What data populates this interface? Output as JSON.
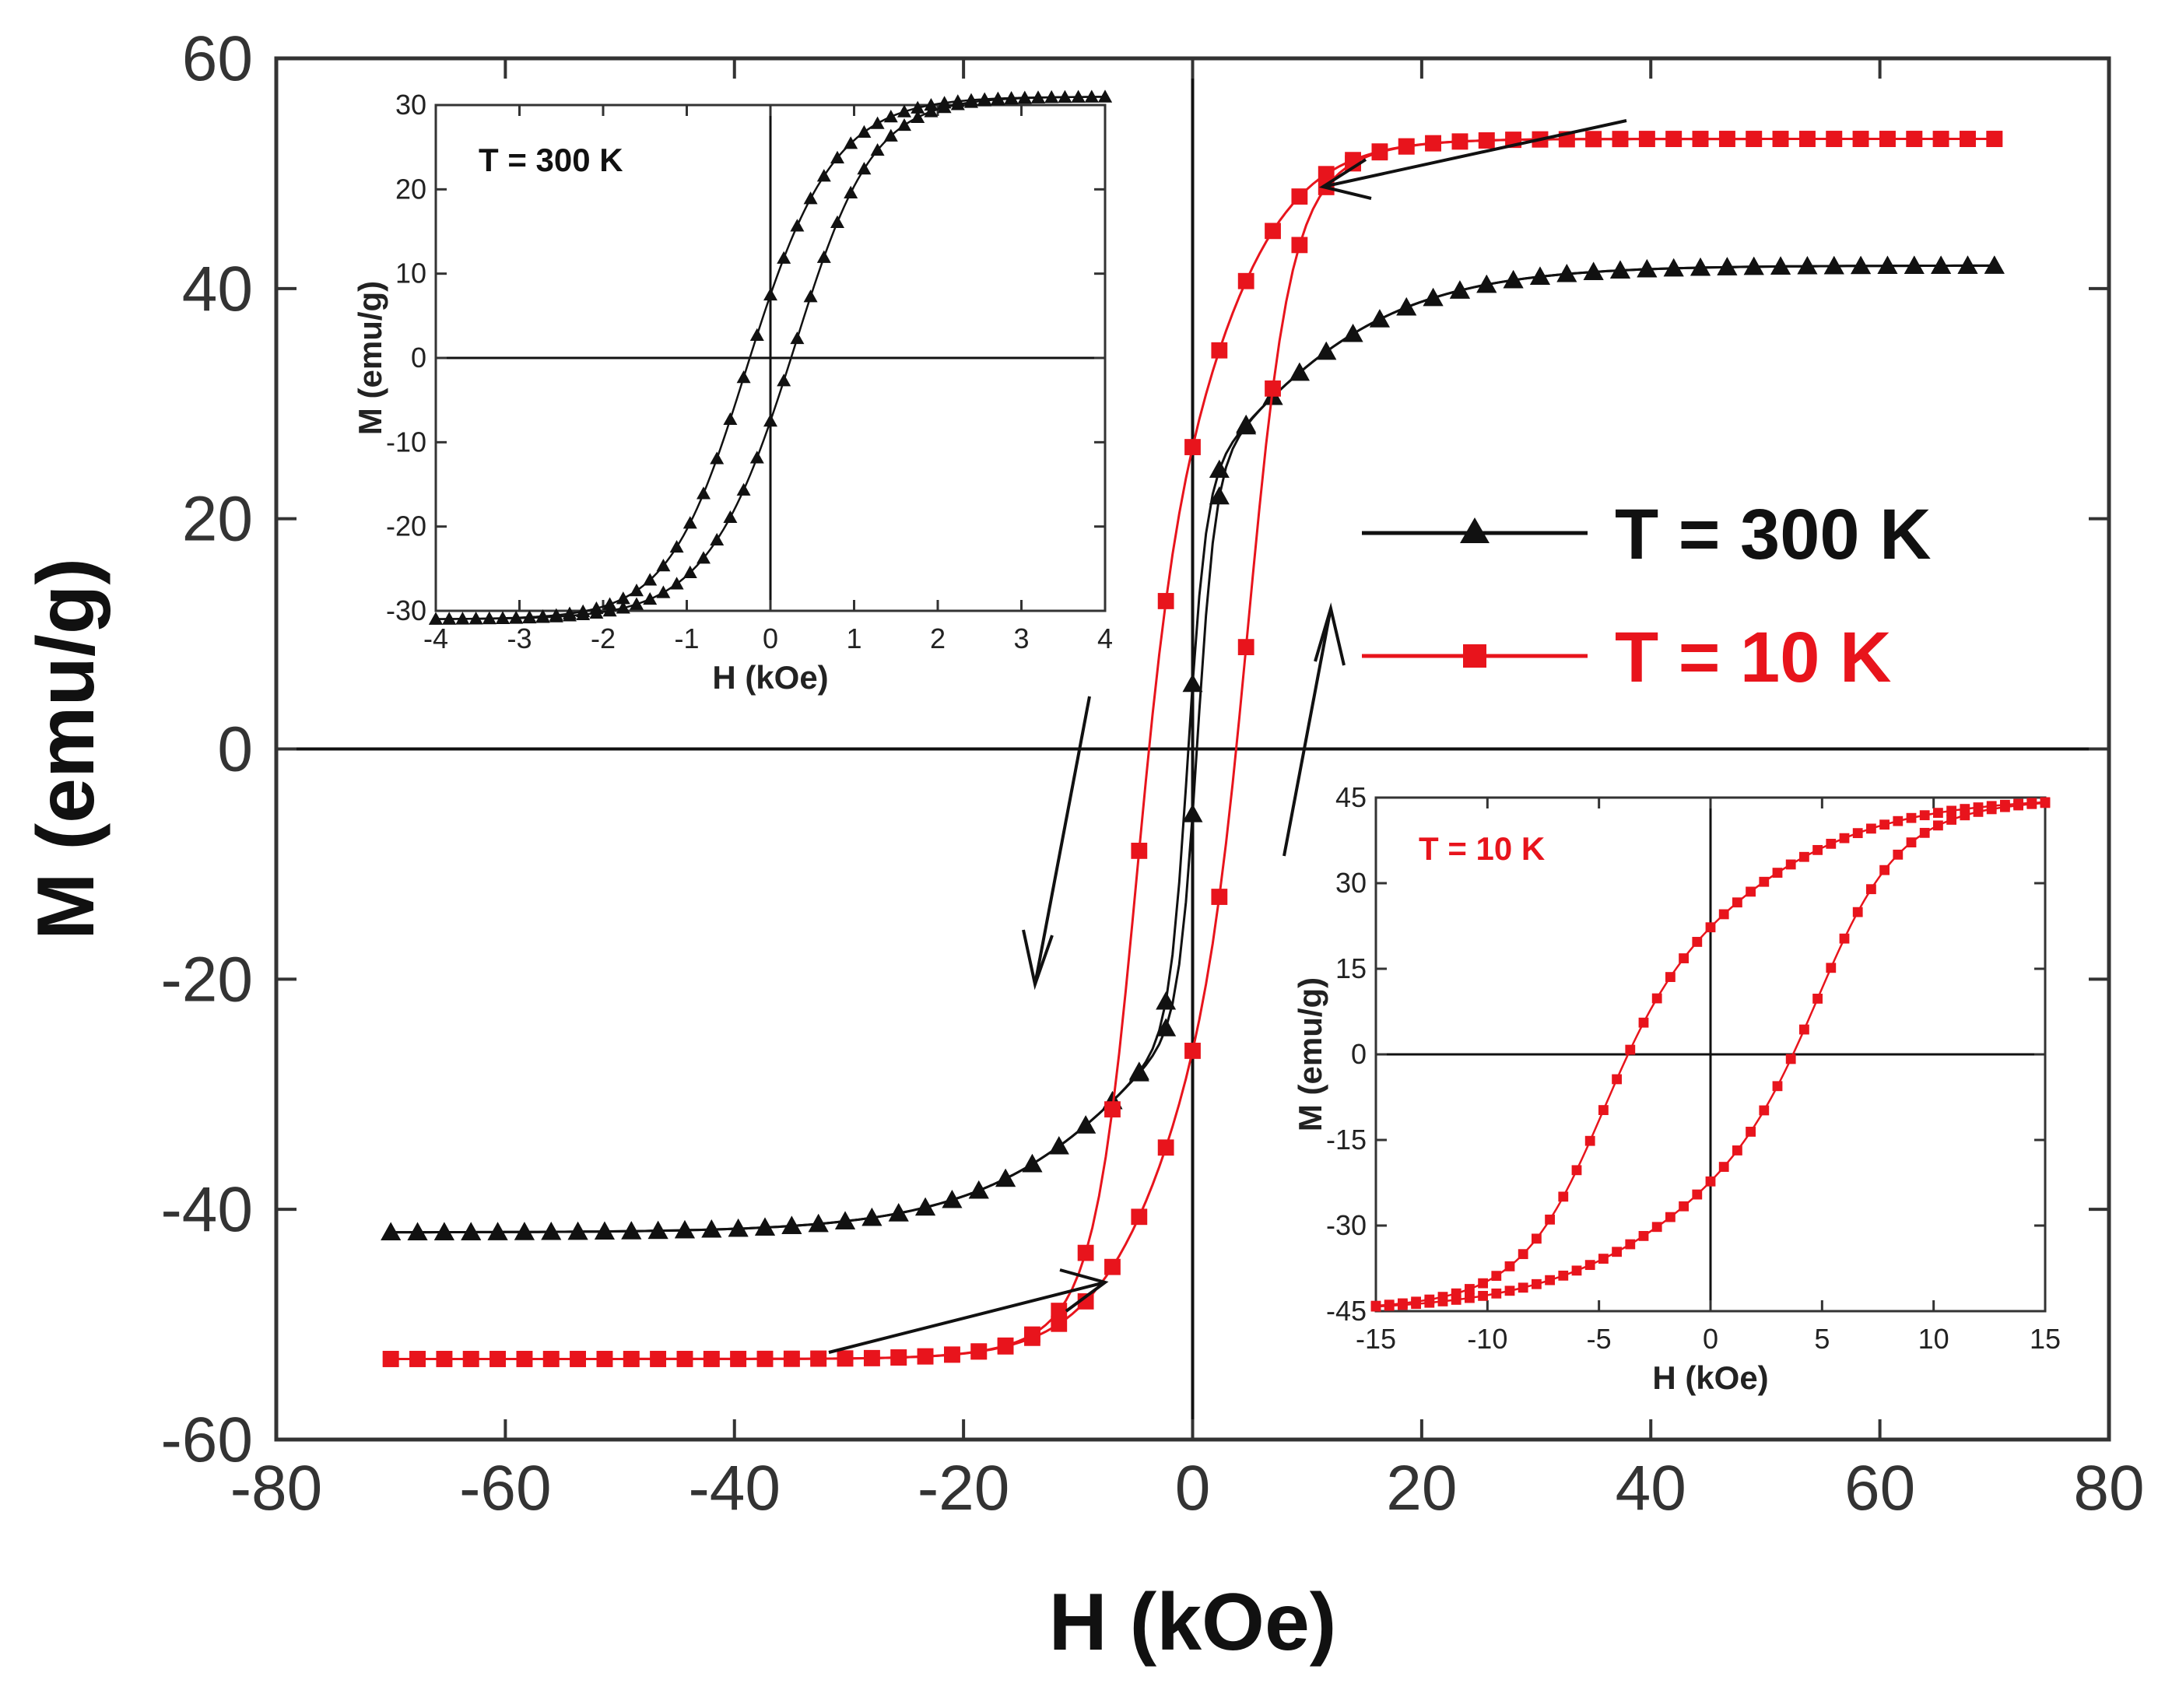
{
  "colors": {
    "black_series": "#111111",
    "red_series": "#e8141c",
    "axis": "#333333",
    "background": "#ffffff"
  },
  "chart_data": [
    {
      "id": "main",
      "type": "scatter",
      "xlabel": "H (kOe)",
      "ylabel": "M (emu/g)",
      "xlim": [
        -80,
        80
      ],
      "ylim": [
        -60,
        60
      ],
      "xticks": [
        -80,
        -60,
        -40,
        -20,
        0,
        20,
        40,
        60,
        80
      ],
      "yticks": [
        -60,
        -40,
        -20,
        0,
        20,
        40,
        60
      ],
      "legend": {
        "position": "right",
        "entries": [
          "T = 300 K",
          "T = 10 K"
        ]
      },
      "series": [
        {
          "name": "T = 300 K",
          "color": "#111111",
          "marker": "triangle",
          "Ms": 42,
          "Hc": 0.4,
          "width": 1.6,
          "slope": 0.06
        },
        {
          "name": "T = 10 K",
          "color": "#e8141c",
          "marker": "square",
          "Ms": 53,
          "Hc": 5,
          "width": 3.4,
          "slope": 0.115
        }
      ],
      "annotations": [
        "sweep-direction arrows: decreasing H on upper branch, increasing H on lower branch"
      ]
    },
    {
      "id": "inset_300K",
      "type": "scatter",
      "title": "T = 300 K",
      "xlabel": "H (kOe)",
      "ylabel": "M (emu/g)",
      "xlim": [
        -4,
        4
      ],
      "ylim": [
        -30,
        30
      ],
      "xticks": [
        -4,
        -3,
        -2,
        -1,
        0,
        1,
        2,
        3,
        4
      ],
      "yticks": [
        -30,
        -20,
        -10,
        0,
        10,
        20,
        30
      ],
      "series": [
        {
          "name": "T = 300 K",
          "color": "#111111",
          "marker": "triangle",
          "Ms": 31,
          "Hc": 0.4,
          "width": 0.85,
          "slope": 0.9
        }
      ]
    },
    {
      "id": "inset_10K",
      "type": "scatter",
      "title": "T = 10 K",
      "xlabel": "H (kOe)",
      "ylabel": "M (emu/g)",
      "xlim": [
        -15,
        15
      ],
      "ylim": [
        -45,
        45
      ],
      "xticks": [
        -15,
        -10,
        -5,
        0,
        5,
        10,
        15
      ],
      "yticks": [
        -45,
        -30,
        -15,
        0,
        15,
        30,
        45
      ],
      "series": [
        {
          "name": "T = 10 K",
          "color": "#e8141c",
          "marker": "square",
          "Ms": 45,
          "Hc": 5,
          "width": 3.4,
          "slope": 0.13
        }
      ]
    }
  ]
}
